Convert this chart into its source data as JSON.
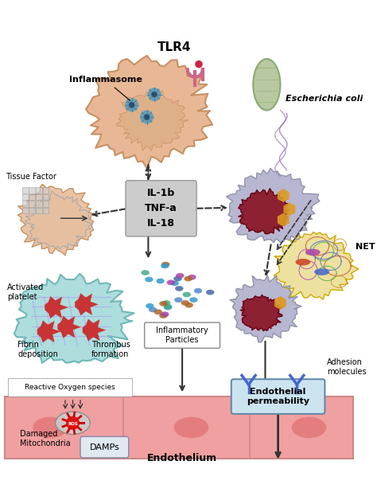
{
  "bg_color": "#ffffff",
  "labels": {
    "tlr4": "TLR4",
    "inflammasome": "Inflammasome",
    "ecoli": "Escherichia coli",
    "tissue_factor": "Tissue Factor",
    "cytokines": [
      "IL-1b",
      "TNF-a",
      "IL-18"
    ],
    "net": "NET",
    "activated_platelet": "Activated\nplatelet",
    "fibrin": "Fibrin\ndeposition",
    "thrombus": "Thrombus\nformation",
    "inflammatory": "Inflammatory\nParticles",
    "adhesion": "Adhesion\nmolecules",
    "endothelial": "Endothelial\npermeability",
    "endothelium": "Endothelium",
    "ros": "Reactive Oxygen species",
    "damaged_mito": "Damaged\nMitochondria",
    "damps": "DAMPs"
  },
  "colors": {
    "macrophage": "#e8b896",
    "macrophage_edge": "#c89060",
    "ecoli_fill": "#b8c8a0",
    "ecoli_edge": "#8aaa70",
    "neutrophil": "#b0b0cc",
    "neutrophil_edge": "#9090aa",
    "nucleus": "#881122",
    "granule": "#dd9922",
    "net_bg": "#e8d880",
    "net_bg_edge": "#ccaa00",
    "platelet_bg": "#a0d8d8",
    "platelet_bg_edge": "#70b8b8",
    "platelet_red": "#cc2222",
    "endothelium_fill": "#f0a0a0",
    "endothelium_edge": "#cc8888",
    "endothelium_nucleus": "#e07070",
    "cytokine_box": "#cccccc",
    "cytokine_edge": "#999999",
    "inf_blue": "#4466aa",
    "inf_teal": "#44aa88",
    "inf_purple": "#aa44aa",
    "inf_navy": "#5588cc",
    "mito_fill": "#cccccc",
    "mito_edge": "#888888",
    "ros_red": "#cc0000",
    "arrow_color": "#333333",
    "damp_fill": "#e0e8f0",
    "damp_edge": "#8888aa",
    "endothelial_fill": "#cce4f0",
    "endothelial_edge": "#6688aa",
    "adhesion_blue": "#4466cc",
    "receptor_pink": "#cc6688",
    "receptor_dot": "#cc2244",
    "flagella1": "#aa88cc",
    "flagella2": "#8866aa",
    "fibrin_line": "#aa88ff",
    "net_col1": "#cc4422",
    "net_col2": "#4466cc",
    "net_col3": "#44aa44",
    "net_col4": "#aa44aa",
    "net_col5": "#cc8822"
  }
}
